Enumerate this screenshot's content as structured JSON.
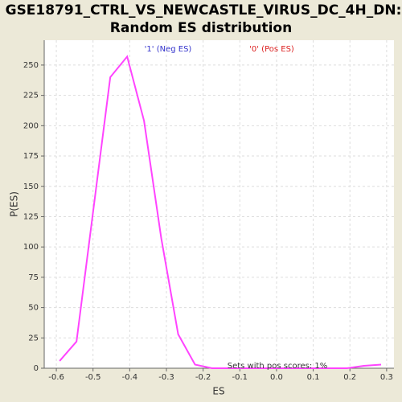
{
  "chart_data": {
    "type": "line",
    "title_lines": [
      "GSE18791_CTRL_VS_NEWCASTLE_VIRUS_DC_4H_DN:",
      "Random ES distribution"
    ],
    "x_label": "ES",
    "y_label": "P(ES)",
    "legend_labels": [
      {
        "text": "'1' (Neg ES)",
        "color": "#3333cc"
      },
      {
        "text": "'0' (Pos ES)",
        "color": "#dd2222"
      }
    ],
    "annotation": "Sets with pos scores: 1%",
    "x": [
      -0.591,
      -0.545,
      -0.499,
      -0.453,
      -0.407,
      -0.361,
      -0.314,
      -0.268,
      -0.222,
      -0.176,
      -0.13,
      -0.084,
      -0.038,
      0.008,
      0.054,
      0.1,
      0.146,
      0.192,
      0.238,
      0.285
    ],
    "series": [
      {
        "color": "#ff44ff",
        "values": [
          6,
          22,
          131,
          240,
          257,
          204,
          107,
          28,
          3,
          0,
          0,
          0,
          0,
          0,
          0,
          0,
          0,
          0,
          2,
          3
        ]
      }
    ],
    "xlim": [
      -0.633,
      0.32
    ],
    "xticks": [
      -0.6,
      -0.5,
      -0.4,
      -0.3,
      -0.2,
      -0.1,
      {
        "value": 0,
        "label": "0.0"
      },
      0.1,
      0.2,
      0.3
    ],
    "ylim": [
      0,
      270.5
    ],
    "yticks": [
      0,
      25,
      50,
      75,
      100,
      125,
      150,
      175,
      200,
      225,
      250
    ],
    "grid": true
  }
}
